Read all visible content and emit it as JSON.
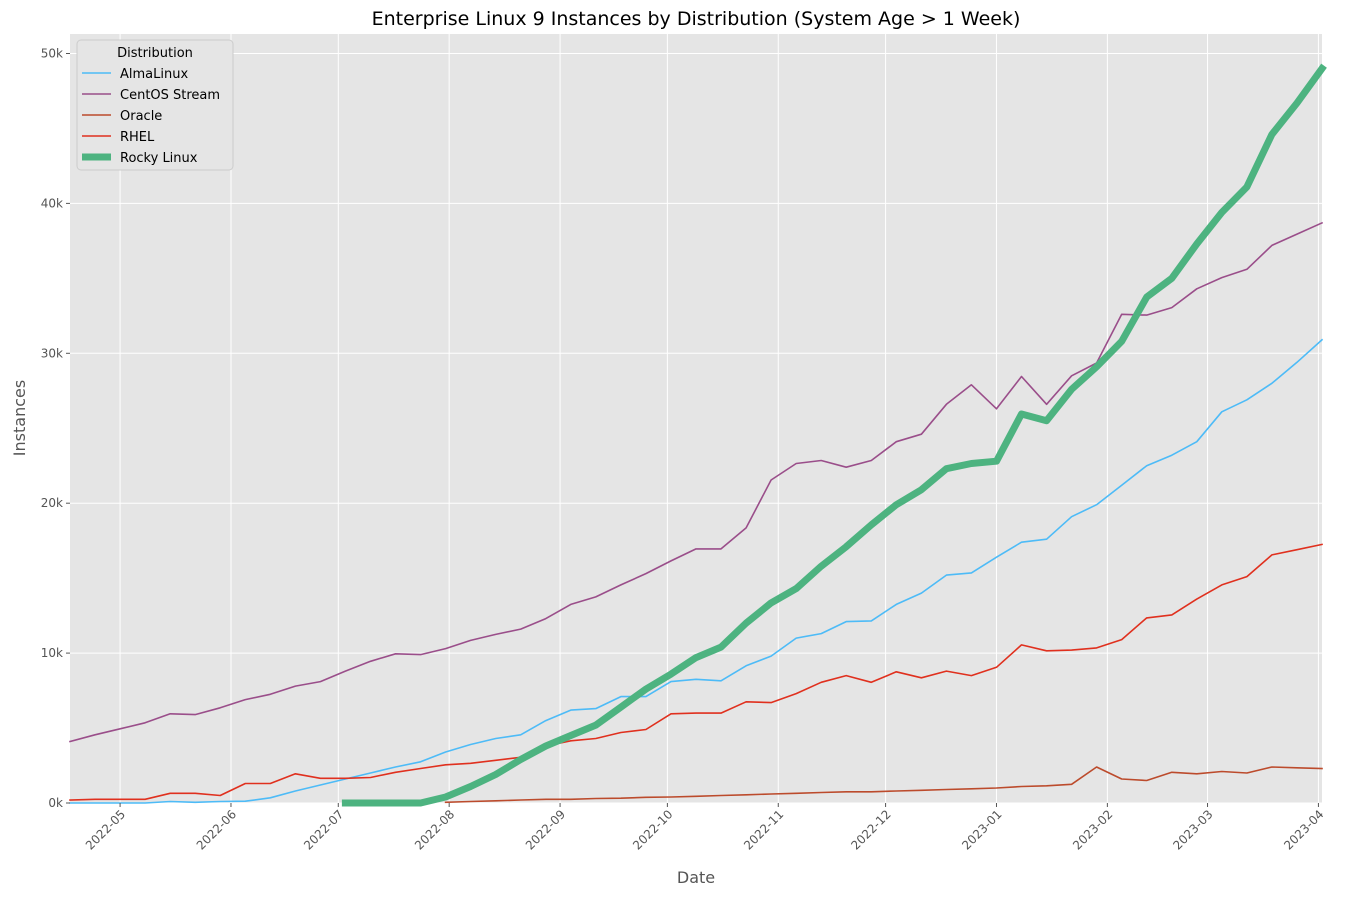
{
  "chart_data": {
    "type": "line",
    "title": "Enterprise Linux 9 Instances by Distribution (System Age > 1 Week)",
    "xlabel": "Date",
    "ylabel": "Instances",
    "xlim": [
      "2022-04-17",
      "2023-04-02"
    ],
    "ylim": [
      0,
      51300
    ],
    "x_ticks": [
      "2022-05",
      "2022-06",
      "2022-07",
      "2022-08",
      "2022-09",
      "2022-10",
      "2022-11",
      "2022-12",
      "2023-01",
      "2023-02",
      "2023-03",
      "2023-04"
    ],
    "y_ticks": [
      0,
      10000,
      20000,
      30000,
      40000,
      50000
    ],
    "y_tick_labels": [
      "0k",
      "10k",
      "20k",
      "30k",
      "40k",
      "50k"
    ],
    "grid": true,
    "legend": {
      "title": "Distribution",
      "position": "top-left"
    },
    "series": [
      {
        "name": "AlmaLinux",
        "color": "#4DBBF7",
        "dates": [
          "2022-04-17",
          "2022-04-24",
          "2022-05-01",
          "2022-05-08",
          "2022-05-15",
          "2022-05-22",
          "2022-05-29",
          "2022-06-05",
          "2022-06-12",
          "2022-06-19",
          "2022-06-26",
          "2022-07-03",
          "2022-07-10",
          "2022-07-17",
          "2022-07-24",
          "2022-07-31",
          "2022-08-07",
          "2022-08-14",
          "2022-08-21",
          "2022-08-28",
          "2022-09-04",
          "2022-09-11",
          "2022-09-18",
          "2022-09-25",
          "2022-10-02",
          "2022-10-09",
          "2022-10-16",
          "2022-10-23",
          "2022-10-30",
          "2022-11-06",
          "2022-11-13",
          "2022-11-20",
          "2022-11-27",
          "2022-12-04",
          "2022-12-11",
          "2022-12-18",
          "2022-12-25",
          "2023-01-01",
          "2023-01-08",
          "2023-01-15",
          "2023-01-22",
          "2023-01-29",
          "2023-02-05",
          "2023-02-12",
          "2023-02-19",
          "2023-02-26",
          "2023-03-05",
          "2023-03-12",
          "2023-03-19",
          "2023-03-26",
          "2023-04-02"
        ],
        "values": [
          0,
          0,
          0,
          0,
          100,
          50,
          100,
          120,
          350,
          800,
          1200,
          1600,
          2000,
          2400,
          2750,
          3400,
          3900,
          4300,
          4550,
          5500,
          6200,
          6300,
          7100,
          7100,
          8100,
          8250,
          8150,
          9150,
          9800,
          11000,
          11300,
          12100,
          12150,
          13250,
          14000,
          15200,
          15350,
          16400,
          17400,
          17600,
          19100,
          19900,
          21200,
          22500,
          23200,
          24100,
          26100,
          26900,
          28000,
          29400,
          30900
        ]
      },
      {
        "name": "CentOS Stream",
        "color": "#9A4E8A",
        "dates": [
          "2022-04-17",
          "2022-04-24",
          "2022-05-01",
          "2022-05-08",
          "2022-05-15",
          "2022-05-22",
          "2022-05-29",
          "2022-06-05",
          "2022-06-12",
          "2022-06-19",
          "2022-06-26",
          "2022-07-03",
          "2022-07-10",
          "2022-07-17",
          "2022-07-24",
          "2022-07-31",
          "2022-08-07",
          "2022-08-14",
          "2022-08-21",
          "2022-08-28",
          "2022-09-04",
          "2022-09-11",
          "2022-09-18",
          "2022-09-25",
          "2022-10-02",
          "2022-10-09",
          "2022-10-16",
          "2022-10-23",
          "2022-10-30",
          "2022-11-06",
          "2022-11-13",
          "2022-11-20",
          "2022-11-27",
          "2022-12-04",
          "2022-12-11",
          "2022-12-18",
          "2022-12-25",
          "2023-01-01",
          "2023-01-08",
          "2023-01-15",
          "2023-01-22",
          "2023-01-29",
          "2023-02-05",
          "2023-02-12",
          "2023-02-19",
          "2023-02-26",
          "2023-03-05",
          "2023-03-12",
          "2023-03-19",
          "2023-03-26",
          "2023-04-02"
        ],
        "values": [
          4100,
          4550,
          4950,
          5350,
          5950,
          5900,
          6350,
          6900,
          7250,
          7800,
          8100,
          8800,
          9450,
          9950,
          9900,
          10300,
          10850,
          11250,
          11600,
          12300,
          13250,
          13750,
          14550,
          15300,
          16150,
          16950,
          16950,
          18350,
          21550,
          22650,
          22850,
          22400,
          22850,
          24100,
          24600,
          26600,
          27900,
          26300,
          28450,
          26600,
          28500,
          29350,
          32600,
          32550,
          33050,
          34300,
          35050,
          35600,
          37200,
          37950,
          38700
        ]
      },
      {
        "name": "Oracle",
        "color": "#BC4B2C",
        "dates": [
          "2022-07-31",
          "2022-08-07",
          "2022-08-14",
          "2022-08-21",
          "2022-08-28",
          "2022-09-04",
          "2022-09-11",
          "2022-09-18",
          "2022-09-25",
          "2022-10-02",
          "2022-10-09",
          "2022-10-16",
          "2022-10-23",
          "2022-10-30",
          "2022-11-06",
          "2022-11-13",
          "2022-11-20",
          "2022-11-27",
          "2022-12-04",
          "2022-12-11",
          "2022-12-18",
          "2022-12-25",
          "2023-01-01",
          "2023-01-08",
          "2023-01-15",
          "2023-01-22",
          "2023-01-29",
          "2023-02-05",
          "2023-02-12",
          "2023-02-19",
          "2023-02-26",
          "2023-03-05",
          "2023-03-12",
          "2023-03-19",
          "2023-03-26",
          "2023-04-02"
        ],
        "values": [
          50,
          100,
          150,
          200,
          250,
          250,
          300,
          320,
          380,
          400,
          450,
          500,
          550,
          600,
          650,
          700,
          750,
          750,
          800,
          850,
          900,
          950,
          1000,
          1100,
          1150,
          1250,
          2400,
          1600,
          1500,
          2050,
          1950,
          2100,
          2000,
          2400,
          2350,
          2300
        ]
      },
      {
        "name": "RHEL",
        "color": "#E0301E",
        "dates": [
          "2022-04-17",
          "2022-04-24",
          "2022-05-01",
          "2022-05-08",
          "2022-05-15",
          "2022-05-22",
          "2022-05-29",
          "2022-06-05",
          "2022-06-12",
          "2022-06-19",
          "2022-06-26",
          "2022-07-03",
          "2022-07-10",
          "2022-07-17",
          "2022-07-24",
          "2022-07-31",
          "2022-08-07",
          "2022-08-14",
          "2022-08-21",
          "2022-08-28",
          "2022-09-04",
          "2022-09-11",
          "2022-09-18",
          "2022-09-25",
          "2022-10-02",
          "2022-10-09",
          "2022-10-16",
          "2022-10-23",
          "2022-10-30",
          "2022-11-06",
          "2022-11-13",
          "2022-11-20",
          "2022-11-27",
          "2022-12-04",
          "2022-12-11",
          "2022-12-18",
          "2022-12-25",
          "2023-01-01",
          "2023-01-08",
          "2023-01-15",
          "2023-01-22",
          "2023-01-29",
          "2023-02-05",
          "2023-02-12",
          "2023-02-19",
          "2023-02-26",
          "2023-03-05",
          "2023-03-12",
          "2023-03-19",
          "2023-03-26",
          "2023-04-02"
        ],
        "values": [
          200,
          250,
          250,
          250,
          650,
          650,
          500,
          1300,
          1300,
          1950,
          1650,
          1650,
          1700,
          2050,
          2300,
          2550,
          2650,
          2850,
          3050,
          3800,
          4150,
          4300,
          4700,
          4900,
          5950,
          6000,
          6000,
          6750,
          6700,
          7300,
          8050,
          8500,
          8050,
          8750,
          8350,
          8800,
          8500,
          9050,
          10550,
          10150,
          10200,
          10350,
          10900,
          12350,
          12550,
          13600,
          14550,
          15100,
          16550,
          16900,
          17250
        ]
      },
      {
        "name": "Rocky Linux",
        "color": "#4DB380",
        "dates": [
          "2022-07-03",
          "2022-07-10",
          "2022-07-17",
          "2022-07-24",
          "2022-07-31",
          "2022-08-07",
          "2022-08-14",
          "2022-08-21",
          "2022-08-28",
          "2022-09-04",
          "2022-09-11",
          "2022-09-18",
          "2022-09-25",
          "2022-10-02",
          "2022-10-09",
          "2022-10-16",
          "2022-10-23",
          "2022-10-30",
          "2022-11-06",
          "2022-11-13",
          "2022-11-20",
          "2022-11-27",
          "2022-12-04",
          "2022-12-11",
          "2022-12-18",
          "2022-12-25",
          "2023-01-01",
          "2023-01-08",
          "2023-01-15",
          "2023-01-22",
          "2023-01-29",
          "2023-02-05",
          "2023-02-12",
          "2023-02-19",
          "2023-02-26",
          "2023-03-05",
          "2023-03-12",
          "2023-03-19",
          "2023-03-26",
          "2023-04-02"
        ],
        "values": [
          0,
          0,
          0,
          0,
          400,
          1100,
          1900,
          2900,
          3800,
          4500,
          5200,
          6400,
          7600,
          8600,
          9700,
          10400,
          12000,
          13350,
          14300,
          15800,
          17100,
          18550,
          19900,
          20900,
          22300,
          22650,
          22800,
          25950,
          25500,
          27600,
          29100,
          30800,
          33750,
          35000,
          37300,
          39400,
          41100,
          44600,
          46700,
          49000
        ]
      }
    ]
  }
}
